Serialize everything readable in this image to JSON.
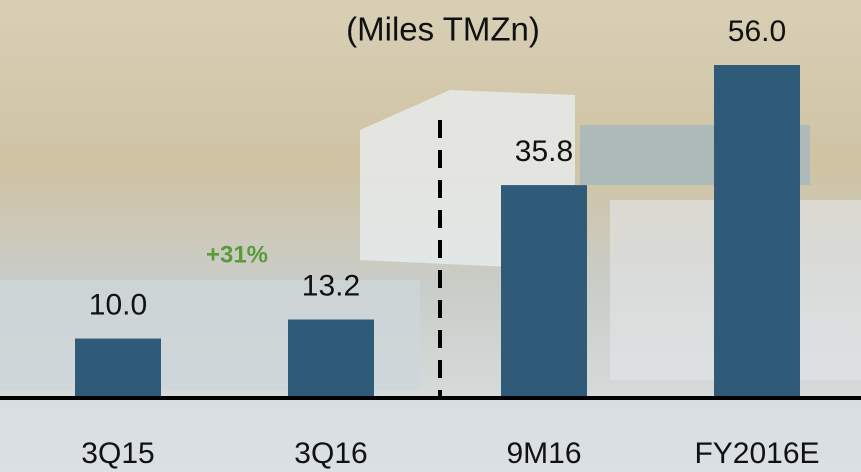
{
  "chart_data": {
    "type": "bar",
    "title": "(Miles TMZn)",
    "categories": [
      "3Q15",
      "3Q16",
      "9M16",
      "FY2016E"
    ],
    "values": [
      10,
      13.2,
      35.8,
      56
    ],
    "value_labels": [
      "10.0",
      "13.2",
      "35.8",
      "56.0"
    ],
    "color": "#2f5a78",
    "annotations": [
      "+31%"
    ]
  }
}
